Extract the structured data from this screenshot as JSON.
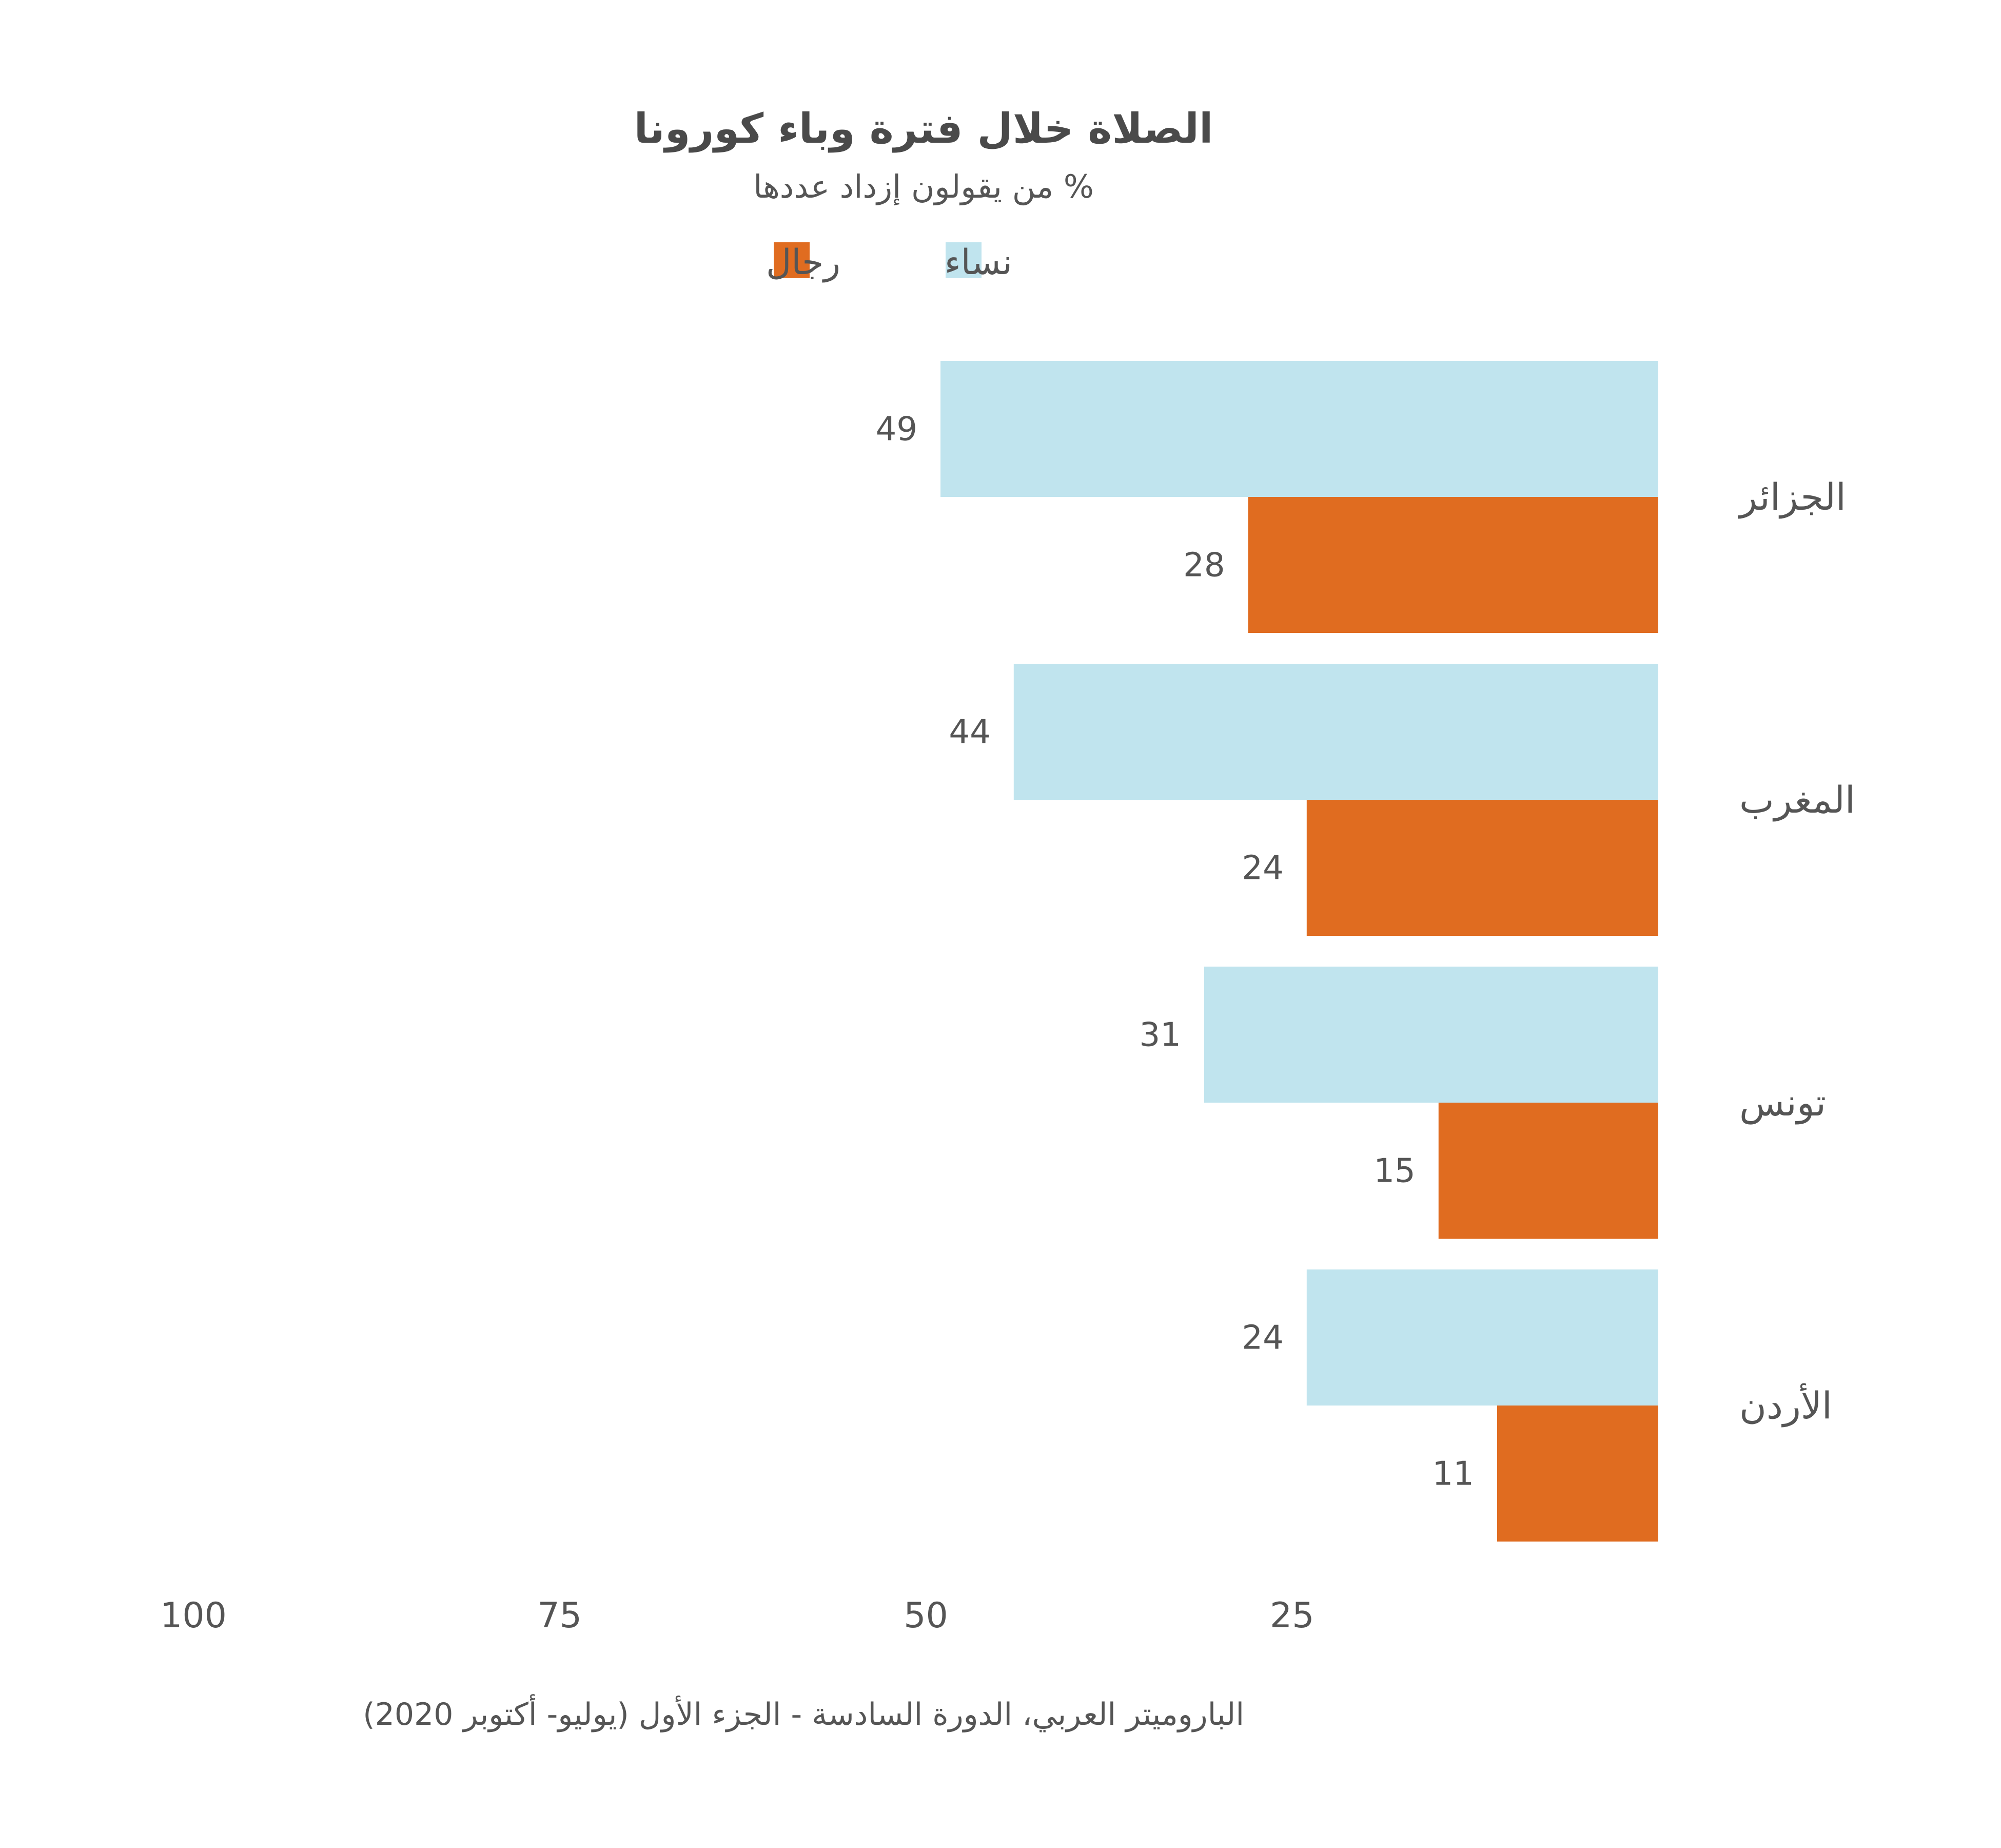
{
  "chart_data": {
    "type": "bar",
    "orientation": "horizontal",
    "title": "الصلاة خلال فترة وباء كورونا",
    "subtitle": "% من يقولون إزداد عددها",
    "categories": [
      "الجزائر",
      "المغرب",
      "تونس",
      "الأردن"
    ],
    "series": [
      {
        "name": "نساء",
        "color": "#c0e4ee",
        "values": [
          49,
          44,
          31,
          24
        ]
      },
      {
        "name": "رجال",
        "color": "#e06c20",
        "values": [
          28,
          24,
          15,
          11
        ]
      }
    ],
    "value_labels": {
      "women": [
        "49",
        "44",
        "31",
        "24"
      ],
      "men": [
        "28",
        "24",
        "15",
        "11"
      ]
    },
    "xlim": [
      0,
      100
    ],
    "x_reversed": true,
    "x_ticks": [
      100,
      75,
      50,
      25
    ],
    "x_tick_labels": [
      "100",
      "75",
      "50",
      "25"
    ],
    "grid": false,
    "legend_position": "top-center",
    "source": "الباروميتر العربي، الدورة السادسة - الجزء الأول (يوليو- أكتوبر 2020)"
  }
}
